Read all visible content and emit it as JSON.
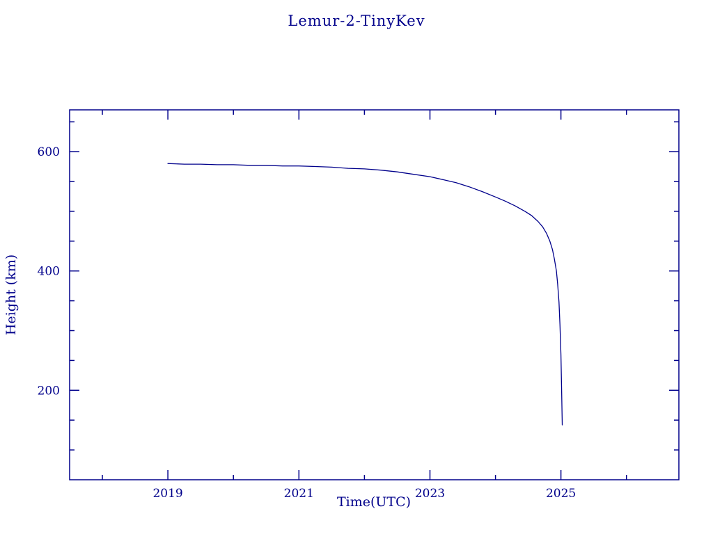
{
  "colors": {
    "accent": "#00008B",
    "background": "#ffffff"
  },
  "chart_data": {
    "type": "line",
    "title": "Lemur-2-TinyKev",
    "xlabel": "Time(UTC)",
    "ylabel": "Height (km)",
    "xlim": [
      2017.5,
      2026.8
    ],
    "ylim": [
      50,
      670
    ],
    "x_ticks": [
      2019,
      2021,
      2023,
      2025
    ],
    "y_ticks": [
      200,
      400,
      600
    ],
    "x_minor_step": 1,
    "y_minor_step": 50,
    "grid": false,
    "legend": "none",
    "line_color": "#00008B",
    "series": [
      {
        "name": "Lemur-2-TinyKev height",
        "x": [
          2019.0,
          2019.25,
          2019.5,
          2019.75,
          2020.0,
          2020.25,
          2020.5,
          2020.75,
          2021.0,
          2021.25,
          2021.5,
          2021.75,
          2022.0,
          2022.25,
          2022.5,
          2022.75,
          2023.0,
          2023.2,
          2023.4,
          2023.6,
          2023.8,
          2024.0,
          2024.15,
          2024.3,
          2024.45,
          2024.55,
          2024.65,
          2024.72,
          2024.78,
          2024.83,
          2024.87,
          2024.9,
          2024.93,
          2024.95,
          2024.97,
          2024.985,
          2025.0,
          2025.01,
          2025.02
        ],
        "y": [
          580,
          579,
          579,
          578,
          578,
          577,
          577,
          576,
          576,
          575,
          574,
          572,
          571,
          569,
          566,
          562,
          558,
          553,
          548,
          541,
          533,
          524,
          517,
          509,
          500,
          493,
          483,
          474,
          463,
          450,
          436,
          420,
          400,
          378,
          348,
          310,
          260,
          200,
          142
        ]
      }
    ]
  }
}
